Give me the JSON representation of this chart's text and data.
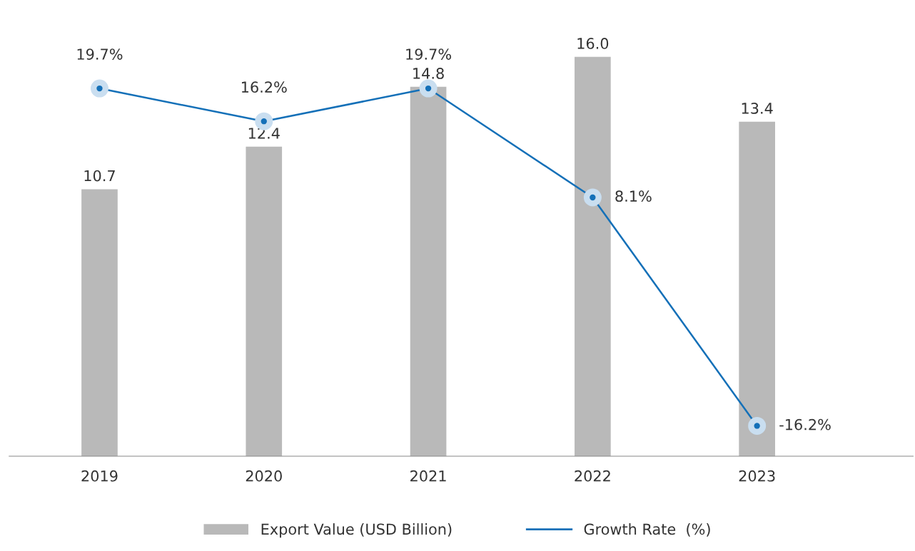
{
  "chart_data": {
    "type": "bar",
    "categories": [
      "2019",
      "2020",
      "2021",
      "2022",
      "2023"
    ],
    "series": [
      {
        "name": "Export Value (USD Billion)",
        "color": "#b9b9b9",
        "values": [
          10.7,
          12.4,
          14.8,
          16.0,
          13.4
        ],
        "value_labels": [
          "10.7",
          "12.4",
          "14.8",
          "16.0",
          "13.4"
        ]
      },
      {
        "name": "Growth Rate  (%)",
        "type": "line",
        "axis": "y2",
        "color": "#1470b8",
        "marker": "circle",
        "values": [
          19.7,
          16.2,
          19.7,
          8.1,
          -16.2
        ],
        "value_labels": [
          "19.7%",
          "16.2%",
          "19.7%",
          "8.1%",
          "-16.2%"
        ]
      }
    ],
    "tick_labels": "x",
    "legend": "bottom",
    "grid": false
  }
}
